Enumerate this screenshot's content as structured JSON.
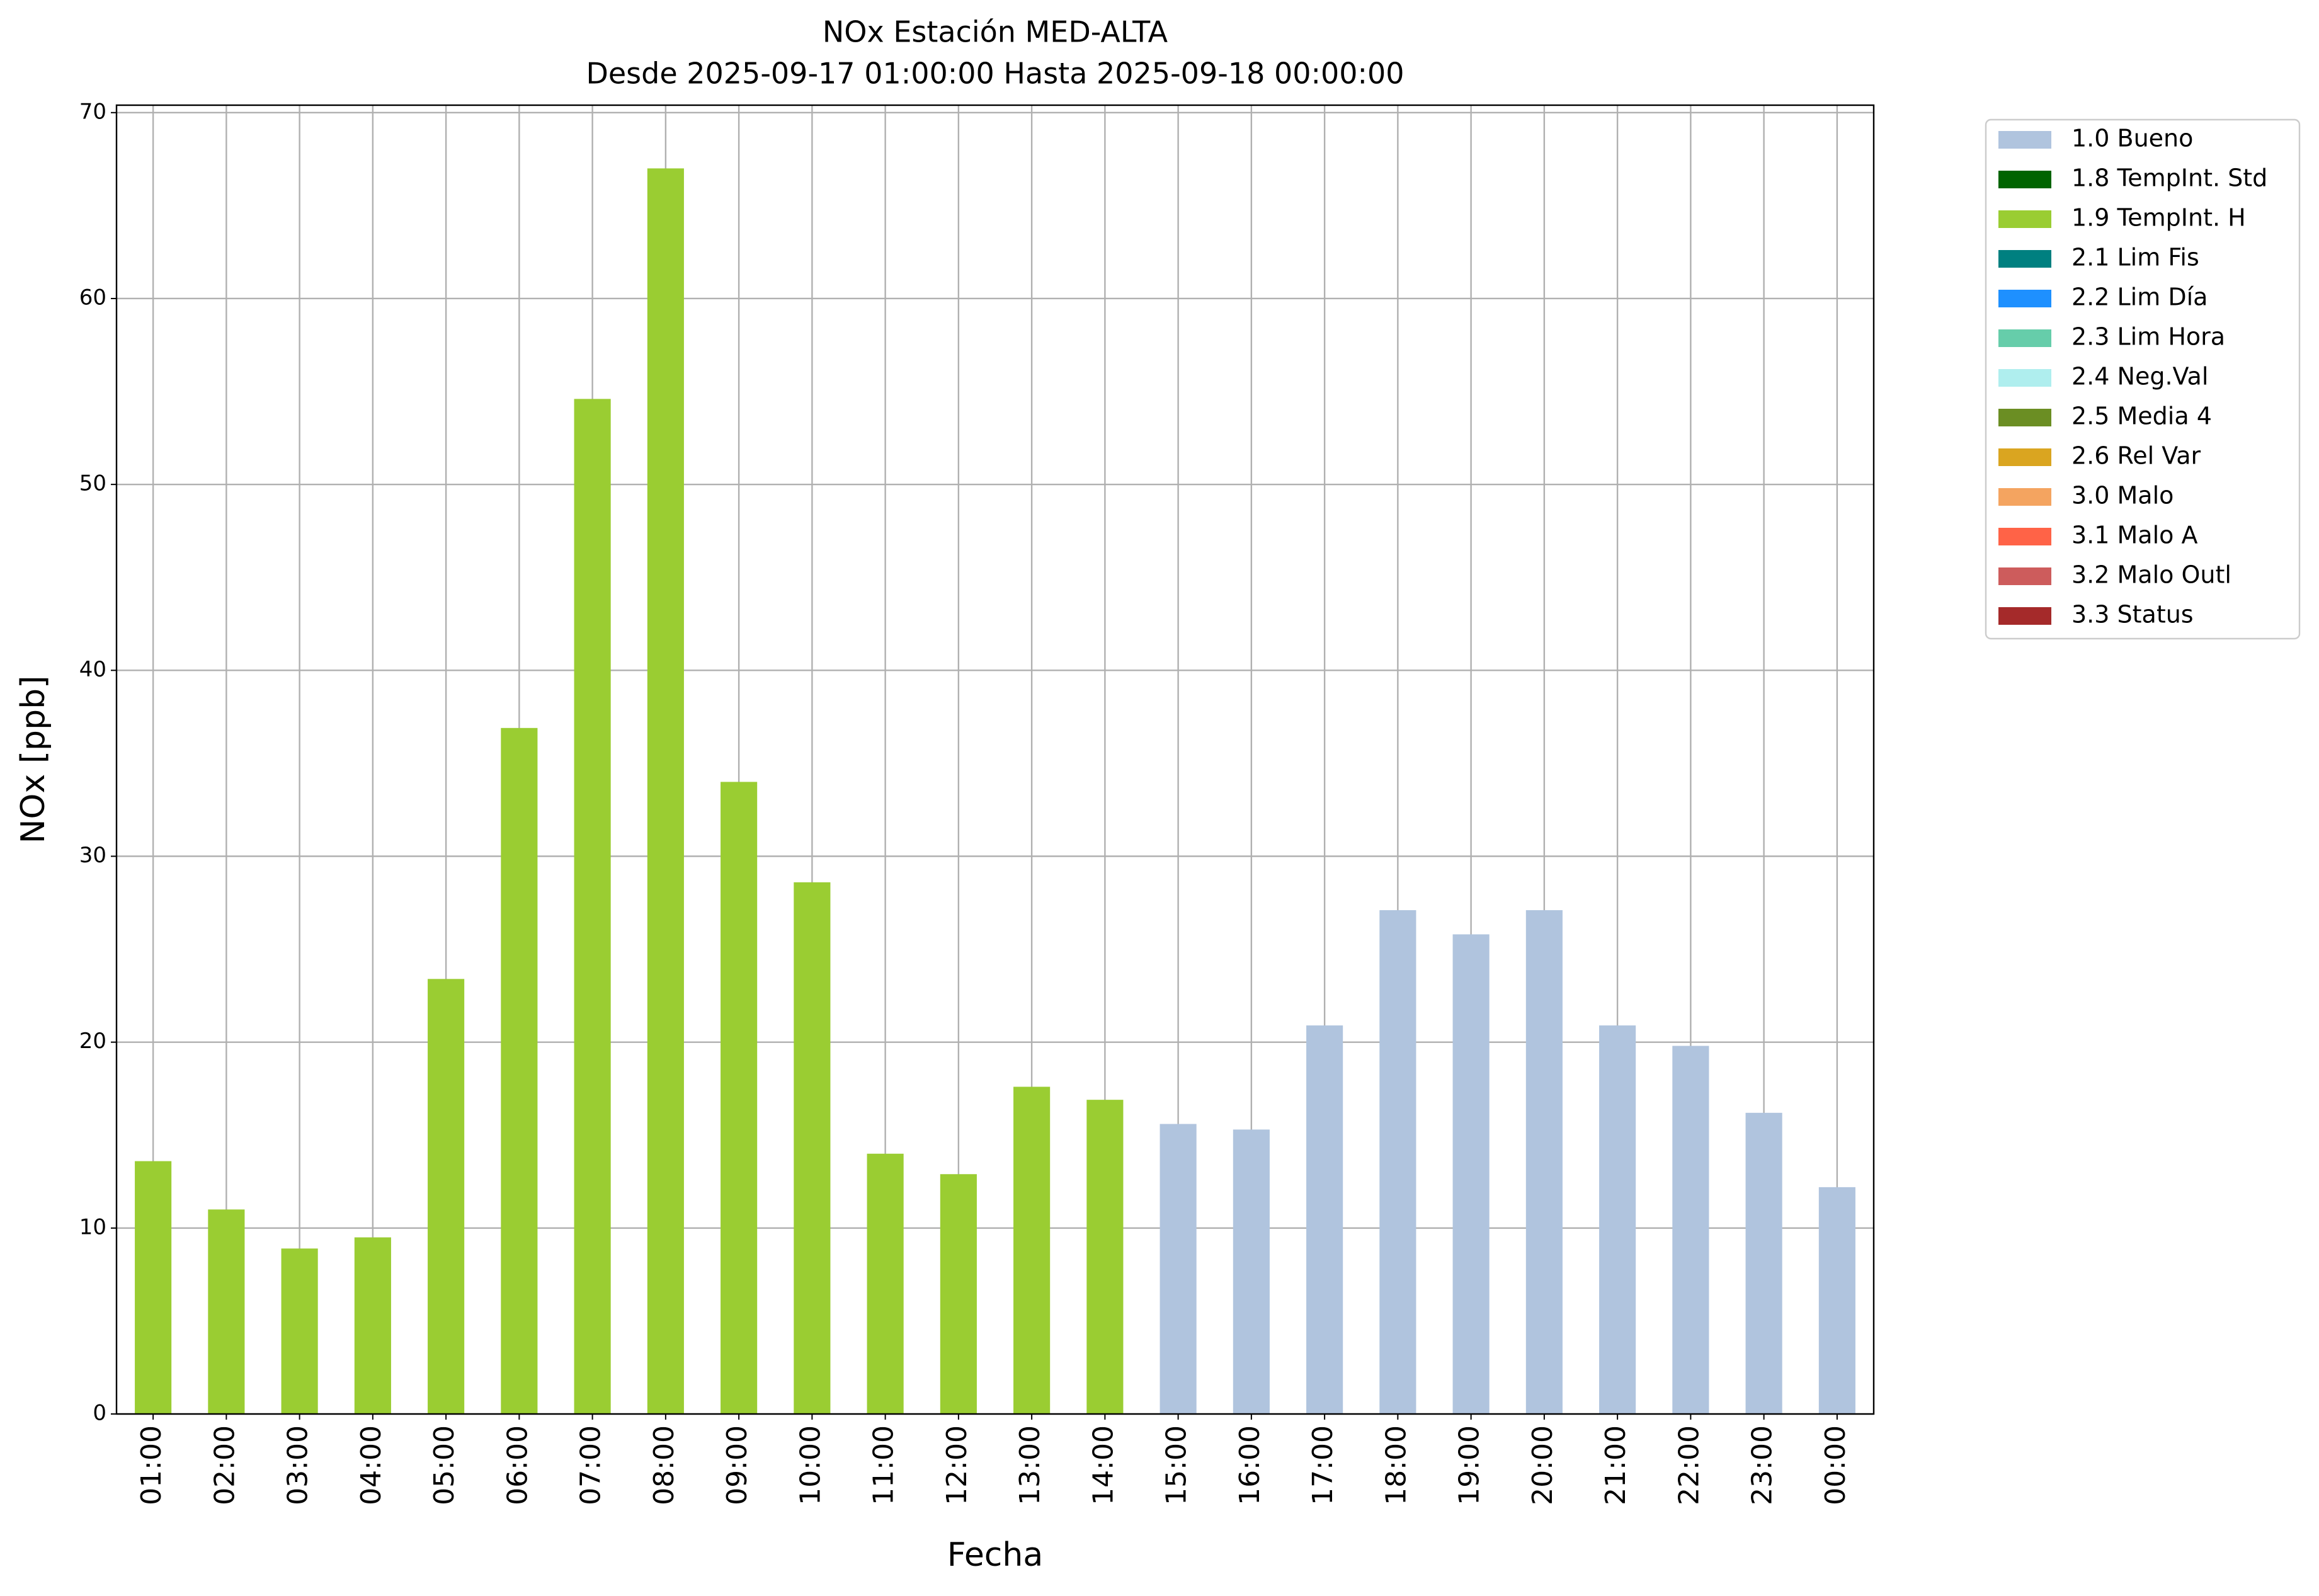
{
  "chart_data": {
    "type": "bar",
    "stacked": true,
    "title": "NOx Estación MED-ALTA",
    "subtitle": "Desde 2025-09-17 01:00:00 Hasta 2025-09-18 00:00:00",
    "x_label": "Fecha",
    "y_label": "NOx [ppb]",
    "categories": [
      "01:00",
      "02:00",
      "03:00",
      "04:00",
      "05:00",
      "06:00",
      "07:00",
      "08:00",
      "09:00",
      "10:00",
      "11:00",
      "12:00",
      "13:00",
      "14:00",
      "15:00",
      "16:00",
      "17:00",
      "18:00",
      "19:00",
      "20:00",
      "21:00",
      "22:00",
      "23:00",
      "00:00"
    ],
    "ylim": [
      0,
      70.4
    ],
    "yticks": [
      0,
      10,
      20,
      30,
      40,
      50,
      60,
      70
    ],
    "grid": true,
    "legend": "outside-right",
    "series": [
      {
        "name": "1.0 Bueno",
        "color": "#b0c4de",
        "values": [
          null,
          null,
          null,
          null,
          null,
          null,
          null,
          null,
          null,
          null,
          null,
          null,
          null,
          null,
          15.6,
          15.3,
          20.9,
          27.1,
          25.8,
          27.1,
          20.9,
          19.8,
          16.2,
          12.2
        ]
      },
      {
        "name": "1.8 TempInt. Std",
        "color": "#006400",
        "values": [
          null,
          null,
          null,
          null,
          null,
          null,
          null,
          null,
          null,
          null,
          null,
          null,
          null,
          null,
          null,
          null,
          null,
          null,
          null,
          null,
          null,
          null,
          null,
          null
        ]
      },
      {
        "name": "1.9 TempInt. H",
        "color": "#9acd32",
        "values": [
          13.6,
          11.0,
          8.9,
          9.5,
          23.4,
          36.9,
          54.6,
          67.0,
          34.0,
          28.6,
          14.0,
          12.9,
          17.6,
          16.9,
          null,
          null,
          null,
          null,
          null,
          null,
          null,
          null,
          null,
          null
        ]
      },
      {
        "name": "2.1 Lim Fis",
        "color": "#008080",
        "values": [
          null,
          null,
          null,
          null,
          null,
          null,
          null,
          null,
          null,
          null,
          null,
          null,
          null,
          null,
          null,
          null,
          null,
          null,
          null,
          null,
          null,
          null,
          null,
          null
        ]
      },
      {
        "name": "2.2 Lim Día",
        "color": "#1e90ff",
        "values": [
          null,
          null,
          null,
          null,
          null,
          null,
          null,
          null,
          null,
          null,
          null,
          null,
          null,
          null,
          null,
          null,
          null,
          null,
          null,
          null,
          null,
          null,
          null,
          null
        ]
      },
      {
        "name": "2.3 Lim Hora",
        "color": "#66cdaa",
        "values": [
          null,
          null,
          null,
          null,
          null,
          null,
          null,
          null,
          null,
          null,
          null,
          null,
          null,
          null,
          null,
          null,
          null,
          null,
          null,
          null,
          null,
          null,
          null,
          null
        ]
      },
      {
        "name": "2.4 Neg.Val",
        "color": "#afeeee",
        "values": [
          null,
          null,
          null,
          null,
          null,
          null,
          null,
          null,
          null,
          null,
          null,
          null,
          null,
          null,
          null,
          null,
          null,
          null,
          null,
          null,
          null,
          null,
          null,
          null
        ]
      },
      {
        "name": "2.5 Media 4",
        "color": "#6b8e23",
        "values": [
          null,
          null,
          null,
          null,
          null,
          null,
          null,
          null,
          null,
          null,
          null,
          null,
          null,
          null,
          null,
          null,
          null,
          null,
          null,
          null,
          null,
          null,
          null,
          null
        ]
      },
      {
        "name": "2.6 Rel Var",
        "color": "#daa520",
        "values": [
          null,
          null,
          null,
          null,
          null,
          null,
          null,
          null,
          null,
          null,
          null,
          null,
          null,
          null,
          null,
          null,
          null,
          null,
          null,
          null,
          null,
          null,
          null,
          null
        ]
      },
      {
        "name": "3.0 Malo",
        "color": "#f4a460",
        "values": [
          null,
          null,
          null,
          null,
          null,
          null,
          null,
          null,
          null,
          null,
          null,
          null,
          null,
          null,
          null,
          null,
          null,
          null,
          null,
          null,
          null,
          null,
          null,
          null
        ]
      },
      {
        "name": "3.1 Malo A",
        "color": "#ff6347",
        "values": [
          null,
          null,
          null,
          null,
          null,
          null,
          null,
          null,
          null,
          null,
          null,
          null,
          null,
          null,
          null,
          null,
          null,
          null,
          null,
          null,
          null,
          null,
          null,
          null
        ]
      },
      {
        "name": "3.2 Malo Outl",
        "color": "#cd5c5c",
        "values": [
          null,
          null,
          null,
          null,
          null,
          null,
          null,
          null,
          null,
          null,
          null,
          null,
          null,
          null,
          null,
          null,
          null,
          null,
          null,
          null,
          null,
          null,
          null,
          null
        ]
      },
      {
        "name": "3.3 Status",
        "color": "#a52a2a",
        "values": [
          null,
          null,
          null,
          null,
          null,
          null,
          null,
          null,
          null,
          null,
          null,
          null,
          null,
          null,
          null,
          null,
          null,
          null,
          null,
          null,
          null,
          null,
          null,
          null
        ]
      }
    ]
  }
}
